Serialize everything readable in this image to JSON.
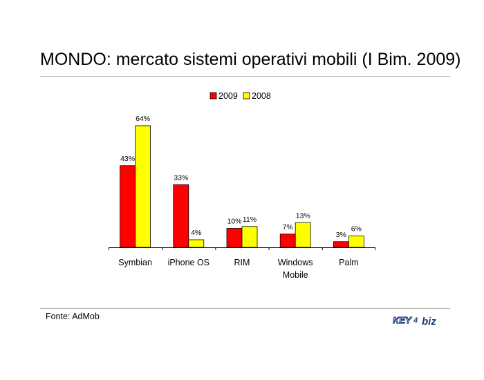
{
  "title": "MONDO: mercato sistemi operativi mobili (I Bim. 2009)",
  "source": "Fonte: AdMob",
  "logo": {
    "name": "key4biz-logo",
    "text_key": "KEY",
    "text_four": "4",
    "text_biz": "biz"
  },
  "colors": {
    "series_2009": "#ff0000",
    "series_2008": "#ffff00",
    "bar_border": "#000000"
  },
  "chart_data": {
    "type": "bar",
    "categories": [
      "Symbian",
      "iPhone OS",
      "RIM",
      "Windows\nMobile",
      "Palm"
    ],
    "series": [
      {
        "name": "2009",
        "values": [
          43,
          33,
          10,
          7,
          3
        ],
        "labels": [
          "43%",
          "33%",
          "10%",
          "7%",
          "3%"
        ]
      },
      {
        "name": "2008",
        "values": [
          64,
          4,
          11,
          13,
          6
        ],
        "labels": [
          "64%",
          "4%",
          "11%",
          "13%",
          "6%"
        ]
      }
    ],
    "ylim": [
      0,
      64
    ],
    "legend_position": "top",
    "grid": false,
    "xlabel": "",
    "ylabel": ""
  }
}
